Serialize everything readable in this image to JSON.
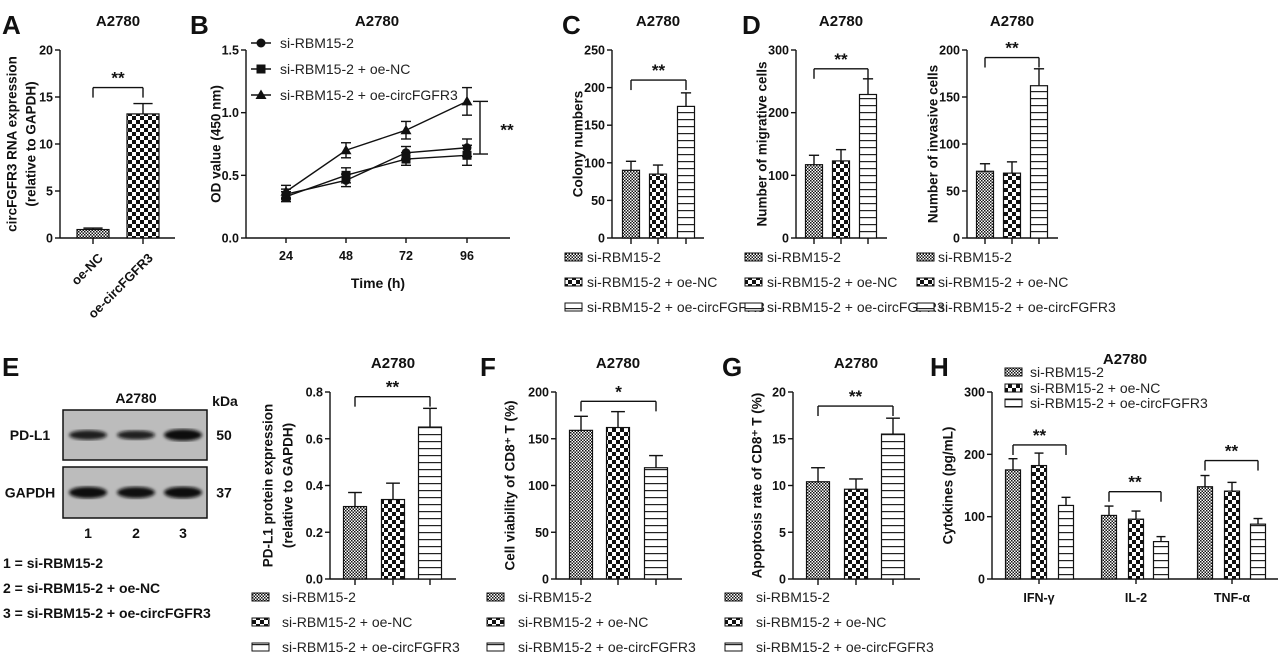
{
  "figure": {
    "panel_letters": [
      "A",
      "B",
      "C",
      "D",
      "E",
      "F",
      "G",
      "H"
    ]
  },
  "blot": {
    "title": "A2780",
    "kda_label": "kDa",
    "rows": [
      {
        "label": "PD-L1",
        "kda": "50",
        "intensity": [
          0.7,
          0.65,
          1.0
        ]
      },
      {
        "label": "GAPDH",
        "kda": "37",
        "intensity": [
          1.0,
          0.95,
          1.0
        ]
      }
    ],
    "lanes": [
      "1",
      "2",
      "3"
    ],
    "key": [
      "1 = si-RBM15-2",
      "2 = si-RBM15-2 + oe-NC",
      "3 = si-RBM15-2 + oe-circFGFR3"
    ]
  },
  "chart_data": [
    {
      "id": "A",
      "type": "bar",
      "title": "A2780",
      "ylabel": [
        "circFGFR3 RNA expression",
        "(relative to GAPDH)"
      ],
      "ylim": [
        0,
        20
      ],
      "yticks": [
        0,
        5,
        10,
        15,
        20
      ],
      "ytick_labels": [
        "0",
        "5",
        "10",
        "15",
        "20"
      ],
      "categories": [
        "oe-NC",
        "oe-circFGFR3"
      ],
      "values": [
        0.9,
        13.2
      ],
      "errors": [
        0.15,
        1.1
      ],
      "patterns": [
        "fine",
        "coarse"
      ],
      "significance": [
        {
          "from": 0,
          "to": 1,
          "y": 16,
          "label": "**"
        }
      ]
    },
    {
      "id": "B",
      "type": "line",
      "title": "A2780",
      "ylabel": [
        "OD value (450 nm)"
      ],
      "xlabel": "Time (h)",
      "ylim": [
        0,
        1.5
      ],
      "yticks": [
        0,
        0.5,
        1.0,
        1.5
      ],
      "ytick_labels": [
        "0.0",
        "0.5",
        "1.0",
        "1.5"
      ],
      "x": [
        24,
        48,
        72,
        96
      ],
      "xtick_labels": [
        "24",
        "48",
        "72",
        "96"
      ],
      "series": [
        {
          "name": "si-RBM15-2",
          "marker": "circle",
          "values": [
            0.35,
            0.46,
            0.68,
            0.72
          ],
          "errors": [
            0.04,
            0.05,
            0.05,
            0.07
          ]
        },
        {
          "name": "si-RBM15-2 + oe-NC",
          "marker": "square",
          "values": [
            0.33,
            0.5,
            0.63,
            0.66
          ],
          "errors": [
            0.04,
            0.06,
            0.05,
            0.08
          ]
        },
        {
          "name": "si-RBM15-2 + oe-circFGFR3",
          "marker": "triangle",
          "values": [
            0.37,
            0.7,
            0.86,
            1.09
          ],
          "errors": [
            0.05,
            0.06,
            0.07,
            0.11
          ]
        }
      ],
      "significance": [
        {
          "from": 2,
          "to": 0,
          "label": "**"
        }
      ]
    },
    {
      "id": "C",
      "type": "bar",
      "title": "A2780",
      "ylabel": [
        "Colony numbers"
      ],
      "ylim": [
        0,
        250
      ],
      "yticks": [
        0,
        50,
        100,
        150,
        200,
        250
      ],
      "ytick_labels": [
        "0",
        "50",
        "100",
        "150",
        "200",
        "250"
      ],
      "values": [
        90,
        85,
        175
      ],
      "errors": [
        12,
        12,
        18
      ],
      "patterns": [
        "fine",
        "coarse",
        "hlines"
      ],
      "legend": [
        "si-RBM15-2",
        "si-RBM15-2 + oe-NC",
        "si-RBM15-2 + oe-circFGFR3"
      ],
      "significance": [
        {
          "from": 0,
          "to": 2,
          "y": 210,
          "label": "**"
        }
      ]
    },
    {
      "id": "D1",
      "type": "bar",
      "title": "A2780",
      "ylabel": [
        "Number of migrative cells"
      ],
      "ylim": [
        0,
        300
      ],
      "yticks": [
        0,
        100,
        200,
        300
      ],
      "ytick_labels": [
        "0",
        "100",
        "200",
        "300"
      ],
      "values": [
        117,
        123,
        229
      ],
      "errors": [
        15,
        18,
        25
      ],
      "patterns": [
        "fine",
        "coarse",
        "hlines"
      ],
      "legend": [
        "si-RBM15-2",
        "si-RBM15-2 + oe-NC",
        "si-RBM15-2 + oe-circFGFR3"
      ],
      "significance": [
        {
          "from": 0,
          "to": 2,
          "y": 270,
          "label": "**"
        }
      ]
    },
    {
      "id": "D2",
      "type": "bar",
      "title": "A2780",
      "ylabel": [
        "Number of invasive cells"
      ],
      "ylim": [
        0,
        200
      ],
      "yticks": [
        0,
        50,
        100,
        150,
        200
      ],
      "ytick_labels": [
        "0",
        "50",
        "100",
        "150",
        "200"
      ],
      "values": [
        71,
        69,
        162
      ],
      "errors": [
        8,
        12,
        18
      ],
      "patterns": [
        "fine",
        "coarse",
        "hlines"
      ],
      "legend": [
        "si-RBM15-2",
        "si-RBM15-2 + oe-NC",
        "si-RBM15-2 + oe-circFGFR3"
      ],
      "significance": [
        {
          "from": 0,
          "to": 2,
          "y": 192,
          "label": "**"
        }
      ]
    },
    {
      "id": "E",
      "type": "bar",
      "title": "A2780",
      "ylabel": [
        "PD-L1 protein expression",
        "(relative to GAPDH)"
      ],
      "ylim": [
        0,
        0.8
      ],
      "yticks": [
        0,
        0.2,
        0.4,
        0.6,
        0.8
      ],
      "ytick_labels": [
        "0.0",
        "0.2",
        "0.4",
        "0.6",
        "0.8"
      ],
      "values": [
        0.31,
        0.34,
        0.65
      ],
      "errors": [
        0.06,
        0.07,
        0.08
      ],
      "patterns": [
        "fine",
        "coarse",
        "hlines"
      ],
      "legend": [
        "si-RBM15-2",
        "si-RBM15-2 + oe-NC",
        "si-RBM15-2 + oe-circFGFR3"
      ],
      "significance": [
        {
          "from": 0,
          "to": 2,
          "y": 0.78,
          "label": "**"
        }
      ]
    },
    {
      "id": "F",
      "type": "bar",
      "title": "A2780",
      "ylabel": [
        "Cell viability of CD8⁺ T (%)"
      ],
      "ylim": [
        0,
        200
      ],
      "yticks": [
        0,
        50,
        100,
        150,
        200
      ],
      "ytick_labels": [
        "0",
        "50",
        "100",
        "150",
        "200"
      ],
      "values": [
        159,
        162,
        119
      ],
      "errors": [
        15,
        17,
        13
      ],
      "patterns": [
        "fine",
        "coarse",
        "hlines"
      ],
      "legend": [
        "si-RBM15-2",
        "si-RBM15-2 + oe-NC",
        "si-RBM15-2 + oe-circFGFR3"
      ],
      "significance": [
        {
          "from": 0,
          "to": 2,
          "y": 190,
          "label": "*"
        }
      ]
    },
    {
      "id": "G",
      "type": "bar",
      "title": "A2780",
      "ylabel": [
        "Apoptosis rate of CD8⁺ T (%)"
      ],
      "ylim": [
        0,
        20
      ],
      "yticks": [
        0,
        5,
        10,
        15,
        20
      ],
      "ytick_labels": [
        "0",
        "5",
        "10",
        "15",
        "20"
      ],
      "values": [
        10.4,
        9.6,
        15.5
      ],
      "errors": [
        1.5,
        1.1,
        1.7
      ],
      "patterns": [
        "fine",
        "coarse",
        "hlines"
      ],
      "legend": [
        "si-RBM15-2",
        "si-RBM15-2 + oe-NC",
        "si-RBM15-2 + oe-circFGFR3"
      ],
      "significance": [
        {
          "from": 0,
          "to": 2,
          "y": 18.5,
          "label": "**"
        }
      ]
    },
    {
      "id": "H",
      "type": "bar",
      "title": "A2780",
      "ylabel": [
        "Cytokines (pg/mL)"
      ],
      "ylim": [
        0,
        300
      ],
      "yticks": [
        0,
        100,
        200,
        300
      ],
      "ytick_labels": [
        "0",
        "100",
        "200",
        "300"
      ],
      "categories": [
        "IFN-γ",
        "IL-2",
        "TNF-α"
      ],
      "series": [
        {
          "name": "si-RBM15-2",
          "values": [
            175,
            102,
            148
          ],
          "errors": [
            18,
            15,
            18
          ]
        },
        {
          "name": "si-RBM15-2 + oe-NC",
          "values": [
            182,
            96,
            141
          ],
          "errors": [
            20,
            13,
            14
          ]
        },
        {
          "name": "si-RBM15-2 + oe-circFGFR3",
          "values": [
            118,
            60,
            88
          ],
          "errors": [
            13,
            8,
            9
          ]
        }
      ],
      "patterns": [
        "fine",
        "coarse",
        "hlines"
      ],
      "legend": [
        "si-RBM15-2",
        "si-RBM15-2 + oe-NC",
        "si-RBM15-2 + oe-circFGFR3"
      ],
      "significance": [
        {
          "group": 0,
          "y": 215,
          "label": "**"
        },
        {
          "group": 1,
          "y": 140,
          "label": "**"
        },
        {
          "group": 2,
          "y": 190,
          "label": "**"
        }
      ]
    }
  ]
}
